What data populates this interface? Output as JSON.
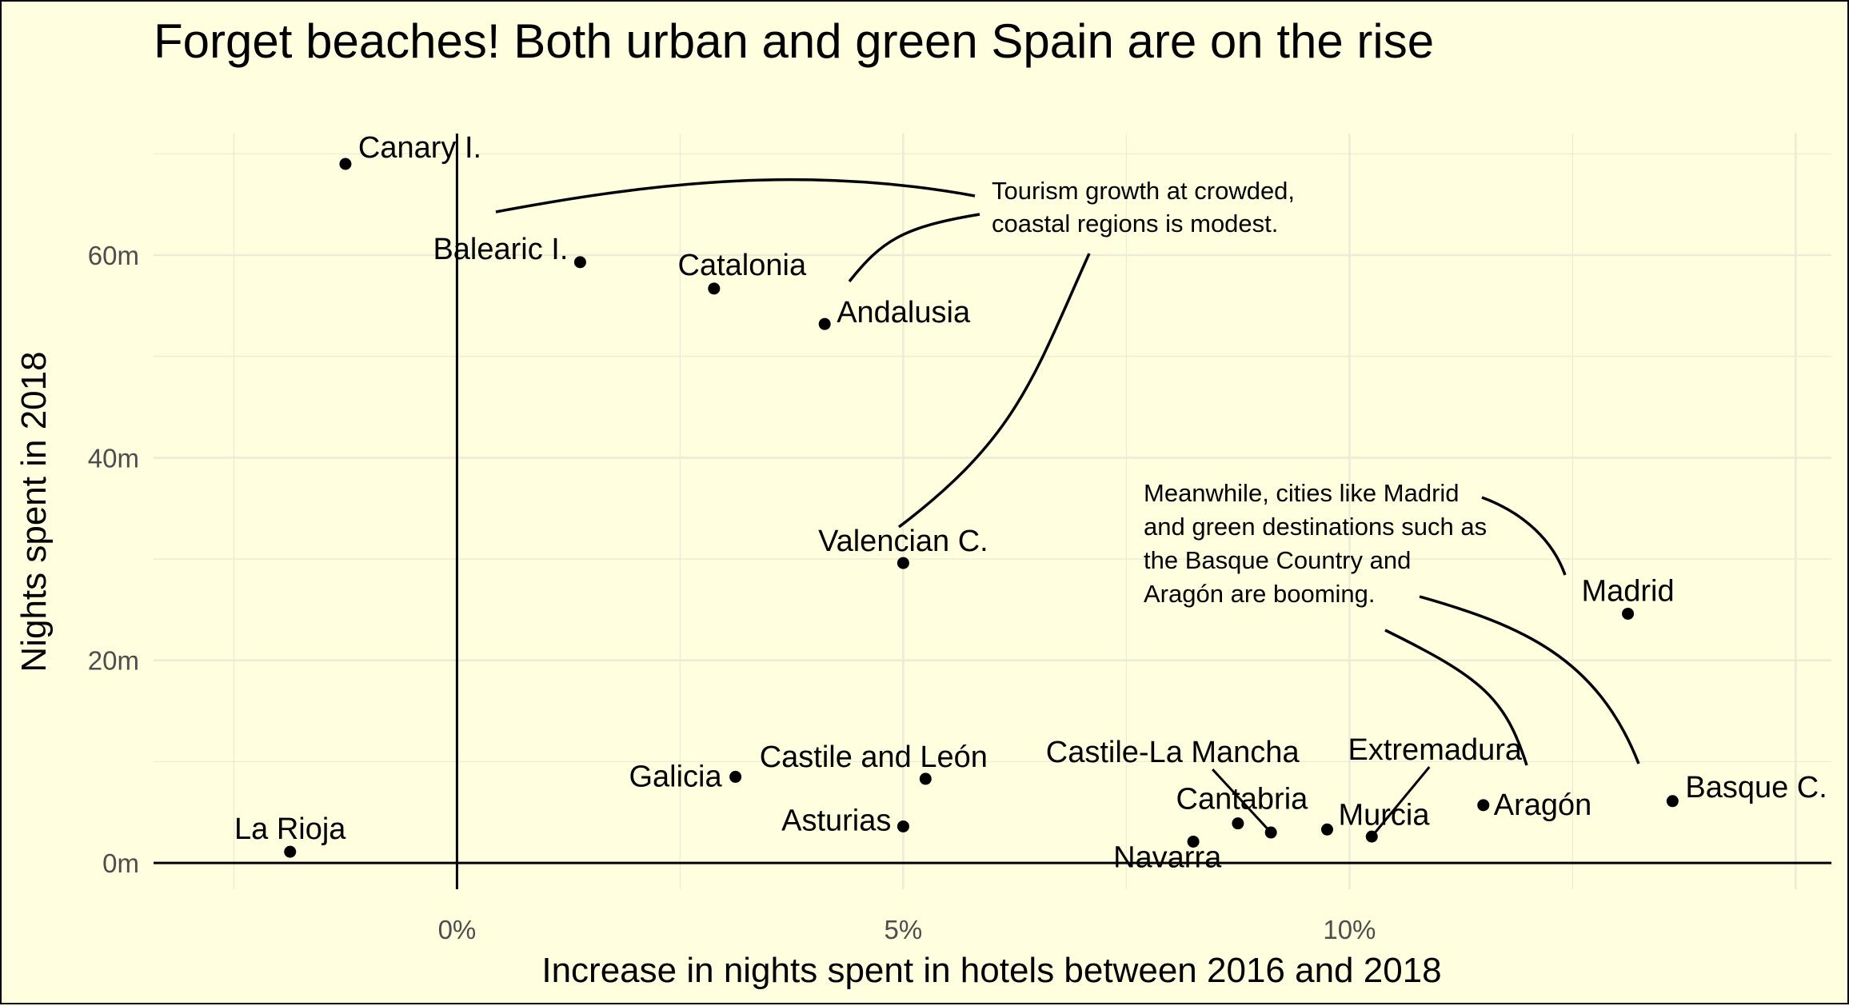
{
  "chart_data": {
    "type": "scatter",
    "title": "Forget beaches! Both urban and green Spain are on the rise",
    "xlabel": "Increase in nights spent in hotels between 2016 and 2018",
    "ylabel": "Nights spent in 2018",
    "xlim": [
      -3.4,
      15.4
    ],
    "ylim": [
      -2.6,
      72
    ],
    "x_ticks": [
      {
        "value": 0,
        "label": "0%"
      },
      {
        "value": 5,
        "label": "5%"
      },
      {
        "value": 10,
        "label": "10%"
      }
    ],
    "y_ticks": [
      {
        "value": 0,
        "label": "0m"
      },
      {
        "value": 20,
        "label": "20m"
      },
      {
        "value": 40,
        "label": "40m"
      },
      {
        "value": 60,
        "label": "60m"
      }
    ],
    "x_unit": "percent",
    "y_unit": "millions of nights",
    "grid": true,
    "legend": "none",
    "points": [
      {
        "name": "Canary I.",
        "x": -1.25,
        "y": 69.0
      },
      {
        "name": "Balearic I.",
        "x": 1.38,
        "y": 59.3
      },
      {
        "name": "Catalonia",
        "x": 2.88,
        "y": 56.7
      },
      {
        "name": "Andalusia",
        "x": 4.12,
        "y": 53.2
      },
      {
        "name": "Valencian C.",
        "x": 5.0,
        "y": 29.6
      },
      {
        "name": "Madrid",
        "x": 13.12,
        "y": 24.6
      },
      {
        "name": "Galicia",
        "x": 3.12,
        "y": 8.5
      },
      {
        "name": "Castile and León",
        "x": 5.25,
        "y": 8.3
      },
      {
        "name": "Asturias",
        "x": 5.0,
        "y": 3.6
      },
      {
        "name": "La Rioja",
        "x": -1.87,
        "y": 1.1
      },
      {
        "name": "Castile-La Mancha",
        "x": 9.12,
        "y": 3.0
      },
      {
        "name": "Cantabria",
        "x": 8.75,
        "y": 3.9
      },
      {
        "name": "Navarra",
        "x": 8.25,
        "y": 2.1
      },
      {
        "name": "Murcia",
        "x": 9.75,
        "y": 3.3
      },
      {
        "name": "Extremadura",
        "x": 10.25,
        "y": 2.6
      },
      {
        "name": "Aragón",
        "x": 11.5,
        "y": 5.7
      },
      {
        "name": "Basque C.",
        "x": 13.62,
        "y": 6.1
      }
    ],
    "annotations": [
      {
        "lines": [
          "Tourism growth at crowded,",
          "coastal regions is modest."
        ]
      },
      {
        "lines": [
          "Meanwhile, cities like Madrid",
          "and green destinations such as",
          "the Basque Country and",
          "Aragón are booming."
        ]
      }
    ],
    "colors": {
      "background": "#ffffe0",
      "grid": "#ebebd6",
      "point": "#000000",
      "text": "#000000",
      "tick_text": "#4d4d4d"
    }
  }
}
